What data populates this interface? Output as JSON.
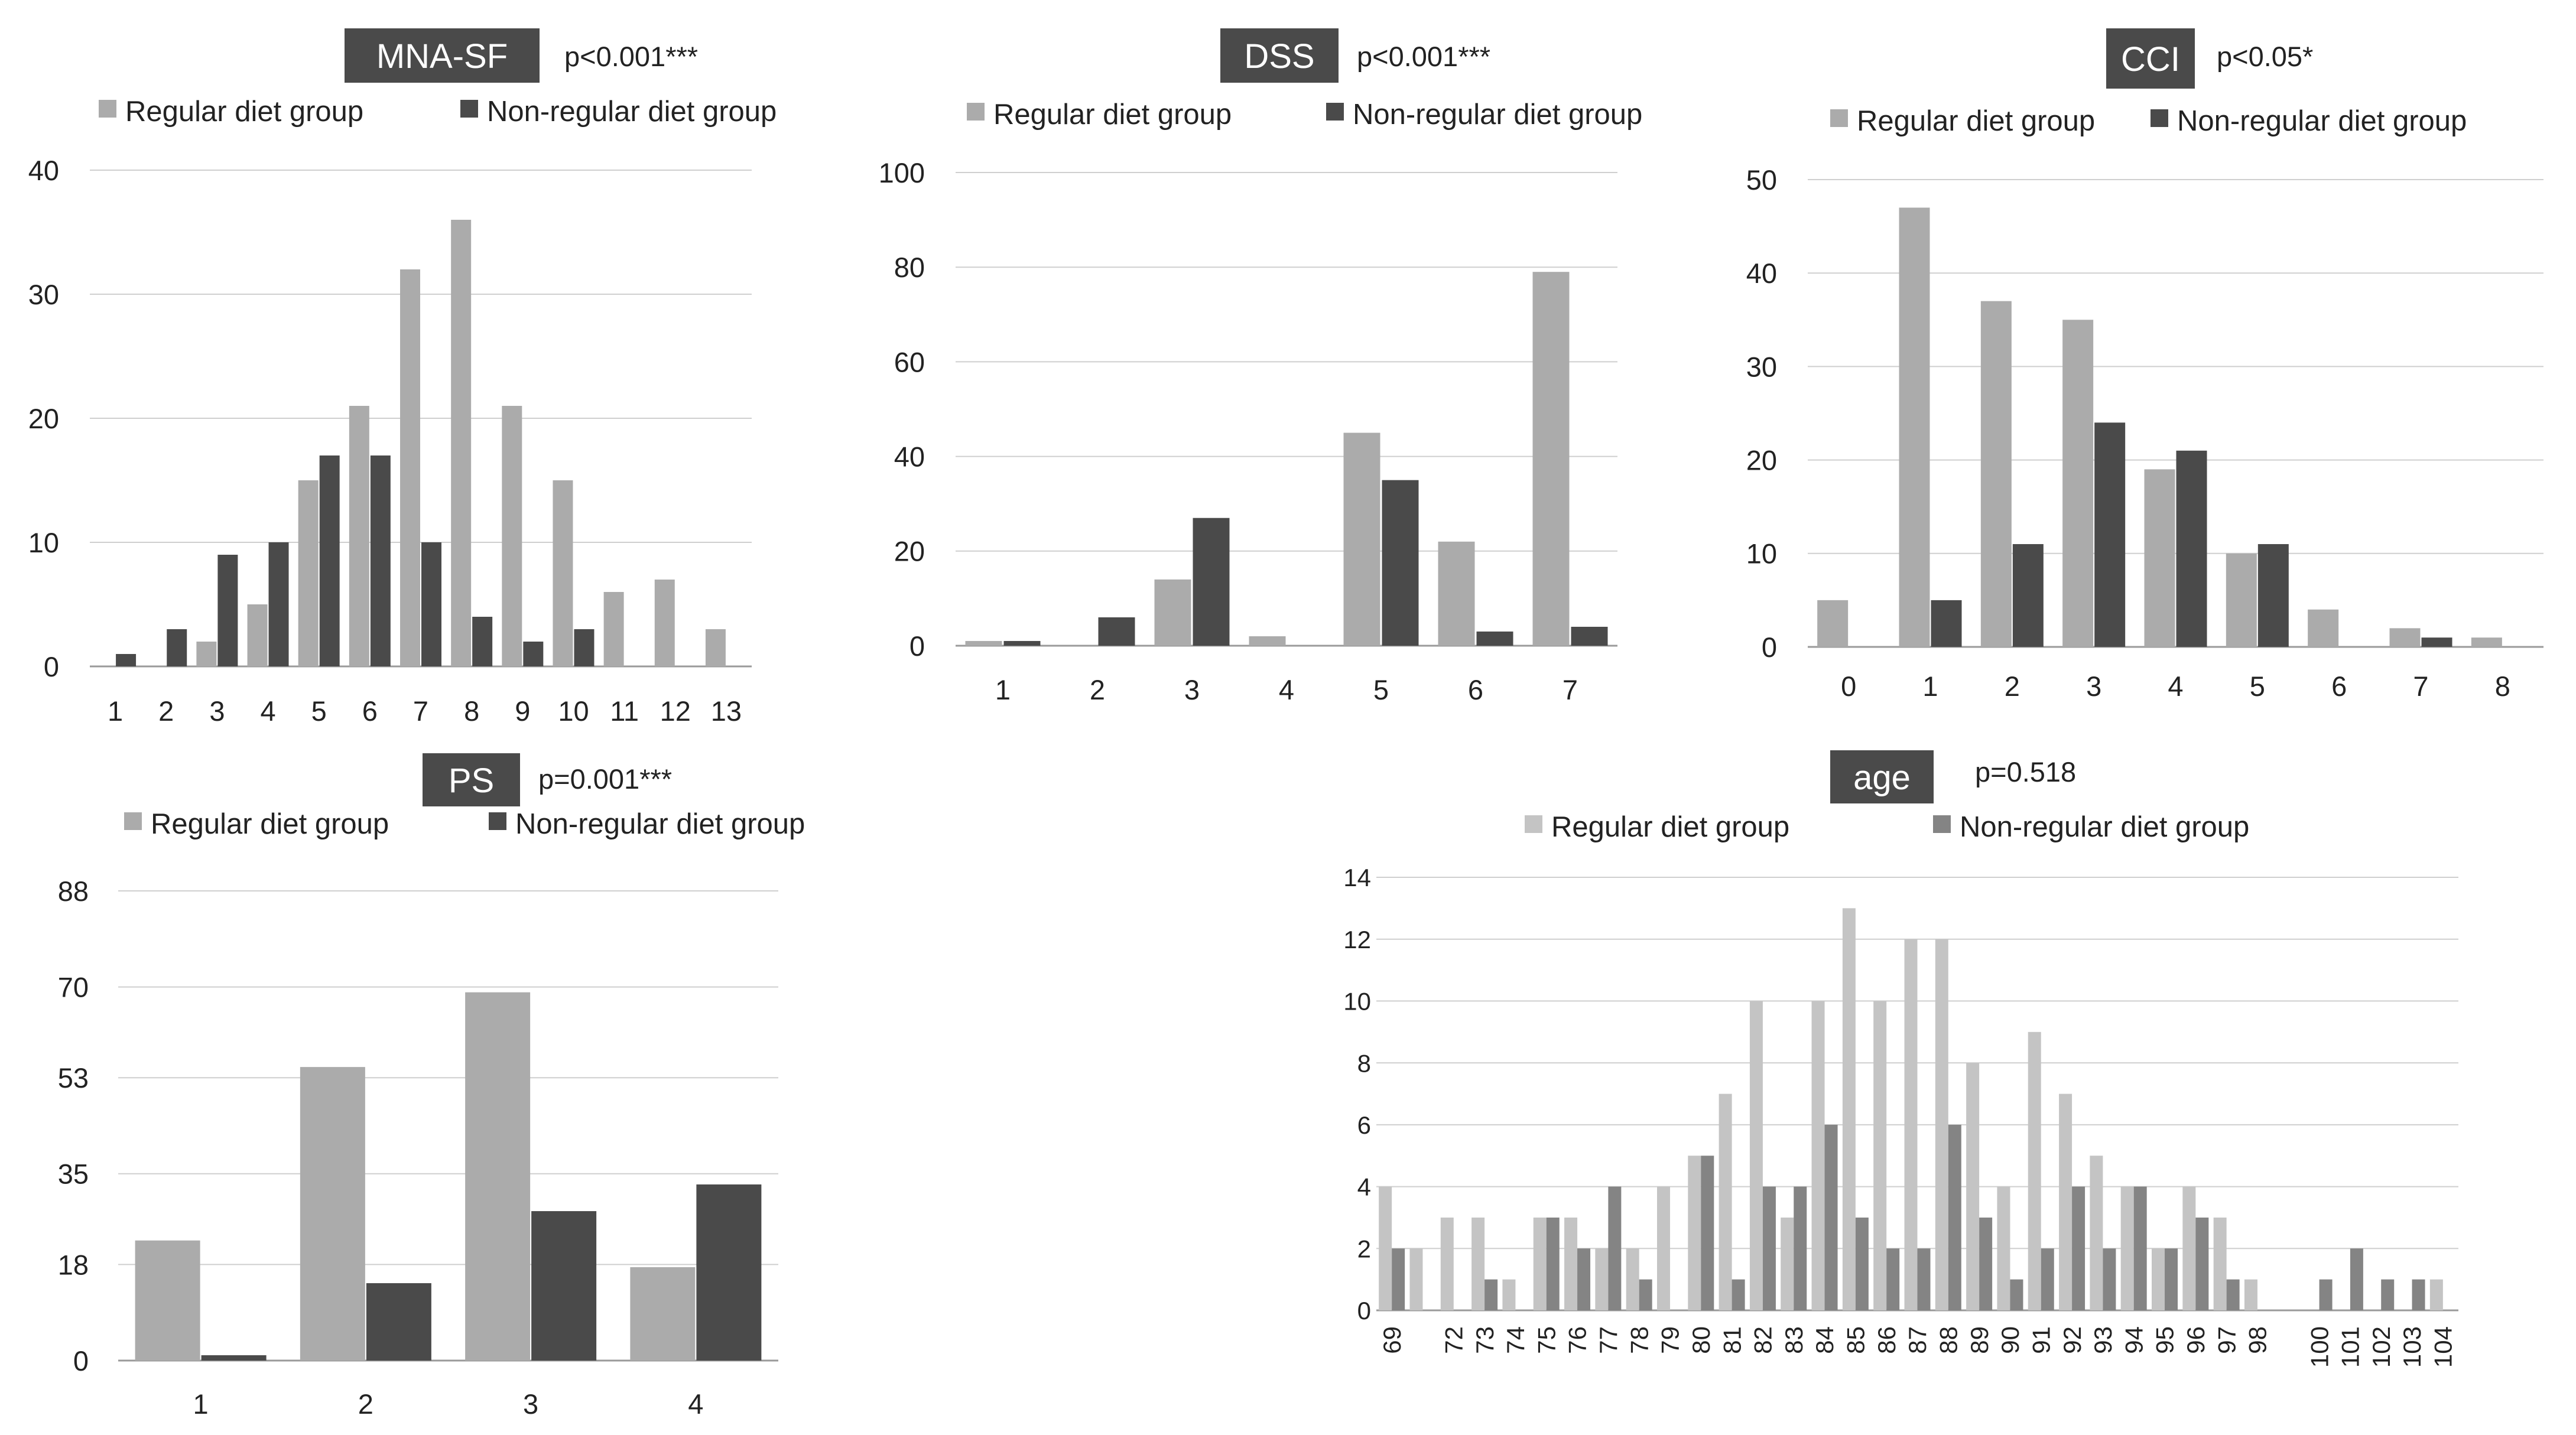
{
  "legend": {
    "regular": "Regular diet group",
    "nonregular": "Non-regular diet group"
  },
  "colors": {
    "regular": "#ababab",
    "nonregular": "#4a4a4a",
    "regular_age": "#c4c4c4",
    "nonregular_age": "#848484",
    "title_bg": "#4a4a4a",
    "grid": "#cfcfcf"
  },
  "chart_data": [
    {
      "id": "mna",
      "type": "bar",
      "title": "MNA-SF",
      "pvalue": "p<0.001***",
      "categories": [
        "1",
        "2",
        "3",
        "4",
        "5",
        "6",
        "7",
        "8",
        "9",
        "10",
        "11",
        "12",
        "13"
      ],
      "series": [
        {
          "name": "Regular diet group",
          "values": [
            0,
            0,
            2,
            5,
            15,
            21,
            32,
            36,
            21,
            15,
            6,
            7,
            3
          ]
        },
        {
          "name": "Non-regular diet group",
          "values": [
            1,
            3,
            9,
            10,
            17,
            17,
            10,
            4,
            2,
            3,
            0,
            0,
            0
          ]
        }
      ],
      "yticks": [
        "0",
        "10",
        "20",
        "30",
        "40"
      ],
      "ylim": [
        0,
        40
      ],
      "legend_position": "top"
    },
    {
      "id": "dss",
      "type": "bar",
      "title": "DSS",
      "pvalue": "p<0.001***",
      "categories": [
        "1",
        "2",
        "3",
        "4",
        "5",
        "6",
        "7"
      ],
      "series": [
        {
          "name": "Regular diet group",
          "values": [
            1,
            0,
            14,
            2,
            45,
            22,
            79
          ]
        },
        {
          "name": "Non-regular diet group",
          "values": [
            1,
            6,
            27,
            0,
            35,
            3,
            4
          ]
        }
      ],
      "yticks": [
        "0",
        "20",
        "40",
        "60",
        "80",
        "100"
      ],
      "ylim": [
        0,
        100
      ],
      "legend_position": "top"
    },
    {
      "id": "cci",
      "type": "bar",
      "title": "CCI",
      "pvalue": "p<0.05*",
      "categories": [
        "0",
        "1",
        "2",
        "3",
        "4",
        "5",
        "6",
        "7",
        "8"
      ],
      "series": [
        {
          "name": "Regular diet group",
          "values": [
            5,
            47,
            37,
            35,
            19,
            10,
            4,
            2,
            1
          ]
        },
        {
          "name": "Non-regular diet group",
          "values": [
            0,
            5,
            11,
            24,
            21,
            11,
            0,
            1,
            0
          ]
        }
      ],
      "yticks": [
        "0",
        "10",
        "20",
        "30",
        "40",
        "50"
      ],
      "ylim": [
        0,
        50
      ],
      "legend_position": "top"
    },
    {
      "id": "ps",
      "type": "bar",
      "title": "PS",
      "pvalue": "p=0.001***",
      "categories": [
        "1",
        "2",
        "3",
        "4"
      ],
      "series": [
        {
          "name": "Regular diet group",
          "values": [
            22.5,
            55,
            69,
            17.5
          ]
        },
        {
          "name": "Non-regular diet group",
          "values": [
            1,
            14.5,
            28,
            33
          ]
        }
      ],
      "yticks": [
        "0",
        "18",
        "35",
        "53",
        "70",
        "88"
      ],
      "ylim": [
        0,
        88
      ],
      "legend_position": "top"
    },
    {
      "id": "age",
      "type": "bar",
      "title": "age",
      "pvalue": "p=0.518",
      "categories": [
        "69",
        "",
        "72",
        "73",
        "74",
        "75",
        "76",
        "77",
        "78",
        "79",
        "80",
        "81",
        "82",
        "83",
        "84",
        "85",
        "86",
        "87",
        "88",
        "89",
        "90",
        "91",
        "92",
        "93",
        "94",
        "95",
        "96",
        "97",
        "98",
        "",
        "100",
        "101",
        "102",
        "103",
        "104"
      ],
      "series": [
        {
          "name": "Regular diet group",
          "values": [
            4,
            2,
            3,
            3,
            1,
            3,
            3,
            2,
            2,
            4,
            5,
            7,
            10,
            3,
            10,
            13,
            10,
            12,
            12,
            8,
            4,
            9,
            7,
            5,
            4,
            2,
            4,
            3,
            1,
            0,
            0,
            0,
            0,
            0,
            1
          ]
        },
        {
          "name": "Non-regular diet group",
          "values": [
            2,
            0,
            0,
            1,
            0,
            3,
            2,
            4,
            1,
            0,
            5,
            1,
            4,
            4,
            6,
            3,
            2,
            2,
            6,
            3,
            1,
            2,
            4,
            2,
            4,
            2,
            3,
            1,
            0,
            0,
            1,
            2,
            1,
            1,
            0
          ]
        }
      ],
      "yticks": [
        "0",
        "2",
        "4",
        "6",
        "8",
        "10",
        "12",
        "14"
      ],
      "ylim": [
        0,
        14
      ],
      "legend_position": "top"
    }
  ]
}
